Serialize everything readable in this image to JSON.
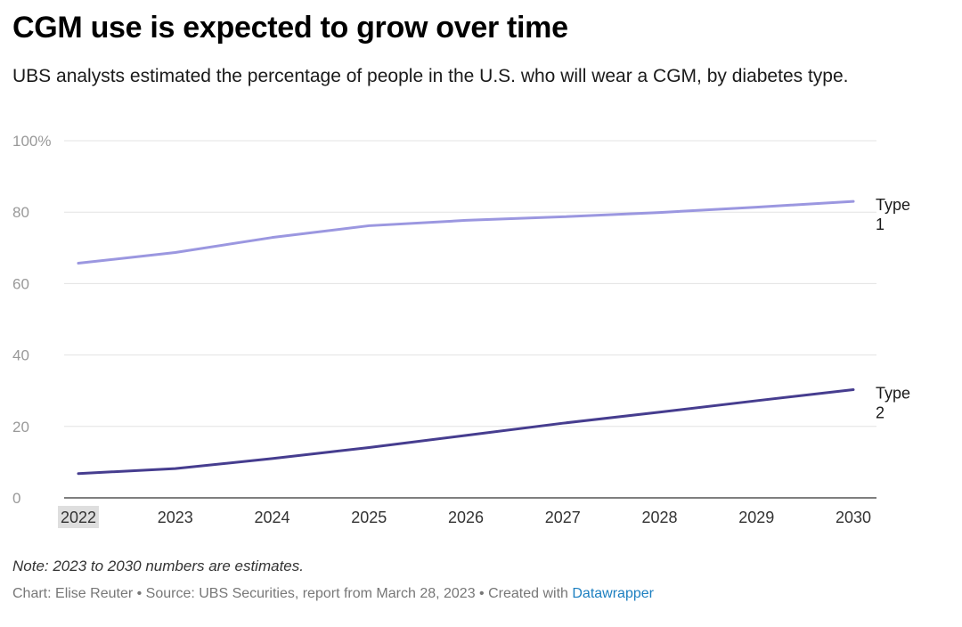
{
  "title": "CGM use is expected to grow over time",
  "subtitle": "UBS analysts estimated the percentage of people in the U.S. who will wear a CGM, by diabetes type.",
  "note": "Note: 2023 to 2030 numbers are estimates.",
  "footer": {
    "credit": "Chart: Elise Reuter • Source: UBS Securities, report from March 28, 2023 • Created with ",
    "link_text": "Datawrapper"
  },
  "colors": {
    "type1": "#9b97e0",
    "type2": "#463d8f",
    "grid": "#e3e3e3",
    "axis": "#333333",
    "highlight": "#dedede"
  },
  "chart_data": {
    "type": "line",
    "x": [
      2022,
      2023,
      2024,
      2025,
      2026,
      2027,
      2028,
      2029,
      2030
    ],
    "ylim": [
      0,
      100
    ],
    "yticks": [
      0,
      20,
      40,
      60,
      80,
      100
    ],
    "ytick_labels": [
      "0",
      "20",
      "40",
      "60",
      "80",
      "100%"
    ],
    "highlighted_x": 2022,
    "series": [
      {
        "name": "Type 1",
        "label_lines": [
          "Type",
          "1"
        ],
        "values": [
          65.7,
          68.7,
          72.9,
          76.2,
          77.7,
          78.7,
          79.9,
          81.4,
          83.0
        ]
      },
      {
        "name": "Type 2",
        "label_lines": [
          "Type",
          "2"
        ],
        "values": [
          6.8,
          8.2,
          11.0,
          14.1,
          17.5,
          20.9,
          24.0,
          27.2,
          30.3
        ]
      }
    ]
  }
}
